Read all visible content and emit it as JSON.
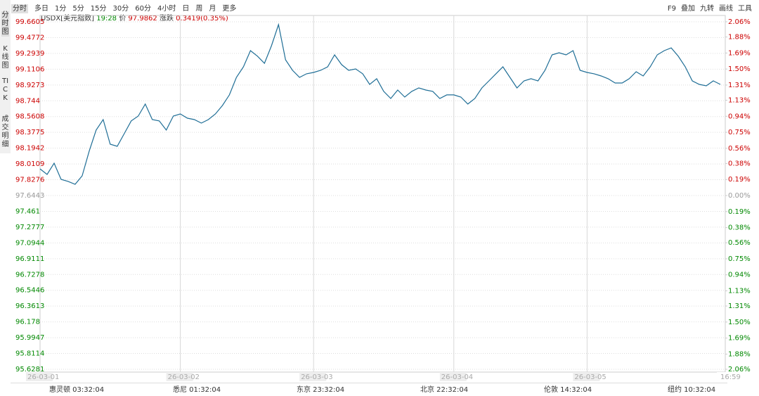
{
  "toolbar": {
    "periods": [
      "分时",
      "多日",
      "1分",
      "5分",
      "15分",
      "30分",
      "60分",
      "4小时",
      "日",
      "周",
      "月",
      "更多"
    ],
    "tools": [
      "F9",
      "叠加",
      "九转",
      "画线",
      "工具"
    ]
  },
  "sidebar": [
    "分时图",
    "K线图",
    "TICK",
    "成交明细"
  ],
  "header": {
    "symbol": "USDX[美元指数]",
    "time": "19:28",
    "price_label": "价",
    "price": "97.9862",
    "change_label": "涨跌",
    "change": "0.3419(0.35%)"
  },
  "timezones": [
    "惠灵顿 03:32:04",
    "悉尼 01:32:04",
    "东京 23:32:04",
    "北京 22:32:04",
    "伦敦 14:32:04",
    "纽约 10:32:04"
  ],
  "chart_data": {
    "type": "line",
    "categories": [
      "26-03-01",
      null,
      null,
      null,
      null,
      null,
      null,
      null,
      null,
      null,
      null,
      null,
      null,
      null,
      null,
      null,
      null,
      null,
      null,
      null,
      "26-03-02",
      null,
      null,
      null,
      null,
      null,
      null,
      null,
      null,
      null,
      null,
      null,
      null,
      null,
      null,
      null,
      null,
      null,
      null,
      "26-03-03",
      null,
      null,
      null,
      null,
      null,
      null,
      null,
      null,
      null,
      null,
      null,
      null,
      null,
      null,
      null,
      null,
      null,
      null,
      null,
      "26-03-04",
      null,
      null,
      null,
      null,
      null,
      null,
      null,
      null,
      null,
      null,
      null,
      null,
      null,
      null,
      null,
      null,
      null,
      null,
      "26-03-05",
      null,
      null,
      null,
      null,
      null,
      null,
      null,
      null,
      null,
      null,
      null,
      null,
      null,
      null,
      null,
      null,
      null,
      null,
      "16:59"
    ],
    "series": [
      {
        "color": "#1f6e96",
        "values": [
          97.954,
          97.889,
          98.02,
          97.832,
          97.808,
          97.775,
          97.873,
          98.159,
          98.404,
          98.526,
          98.24,
          98.216,
          98.363,
          98.51,
          98.567,
          98.706,
          98.526,
          98.51,
          98.404,
          98.567,
          98.591,
          98.542,
          98.526,
          98.485,
          98.526,
          98.591,
          98.689,
          98.812,
          99.016,
          99.138,
          99.326,
          99.261,
          99.179,
          99.383,
          99.628,
          99.22,
          99.097,
          99.016,
          99.057,
          99.073,
          99.097,
          99.138,
          99.277,
          99.163,
          99.097,
          99.114,
          99.057,
          98.934,
          99.0,
          98.853,
          98.771,
          98.869,
          98.787,
          98.853,
          98.893,
          98.869,
          98.853,
          98.771,
          98.812,
          98.812,
          98.787,
          98.706,
          98.771,
          98.893,
          98.975,
          99.057,
          99.138,
          99.016,
          98.893,
          98.975,
          99.0,
          98.975,
          99.097,
          99.277,
          99.301,
          99.277,
          99.326,
          99.097,
          99.073,
          99.057,
          99.032,
          99.0,
          98.95,
          98.95,
          99.0,
          99.081,
          99.032,
          99.138,
          99.277,
          99.326,
          99.358,
          99.261,
          99.138,
          98.975,
          98.934,
          98.918,
          98.975,
          98.934
        ]
      }
    ],
    "ylim": [
      95.6281,
      99.6605
    ],
    "yticks": [
      99.6605,
      99.4772,
      99.2939,
      99.1106,
      98.9273,
      98.744,
      98.5608,
      98.3775,
      98.1942,
      98.0109,
      97.8276,
      97.6443,
      97.461,
      97.2777,
      97.0944,
      96.9111,
      96.7278,
      96.5446,
      96.3613,
      96.178,
      95.9947,
      95.8114,
      95.6281
    ],
    "y2lim": [
      -2.06,
      2.06
    ],
    "y2ticks": [
      {
        "value": 2.06,
        "label": "2.06%"
      },
      {
        "value": 1.88,
        "label": "1.88%"
      },
      {
        "value": 1.69,
        "label": "1.69%"
      },
      {
        "value": 1.5,
        "label": "1.50%"
      },
      {
        "value": 1.31,
        "label": "1.31%"
      },
      {
        "value": 1.13,
        "label": "1.13%"
      },
      {
        "value": 0.94,
        "label": "0.94%"
      },
      {
        "value": 0.75,
        "label": "0.75%"
      },
      {
        "value": 0.56,
        "label": "0.56%"
      },
      {
        "value": 0.38,
        "label": "0.38%"
      },
      {
        "value": 0.19,
        "label": "0.19%"
      },
      {
        "value": 0,
        "label": "0.00%"
      },
      {
        "value": -0.19,
        "label": "0.19%"
      },
      {
        "value": -0.38,
        "label": "0.38%"
      },
      {
        "value": -0.56,
        "label": "0.56%"
      },
      {
        "value": -0.75,
        "label": "0.75%"
      },
      {
        "value": -0.94,
        "label": "0.94%"
      },
      {
        "value": -1.13,
        "label": "1.13%"
      },
      {
        "value": -1.31,
        "label": "1.31%"
      },
      {
        "value": -1.5,
        "label": "1.50%"
      },
      {
        "value": -1.69,
        "label": "1.69%"
      },
      {
        "value": -1.88,
        "label": "1.88%"
      },
      {
        "value": -2.06,
        "label": "2.06%"
      }
    ],
    "up_color": "#cc0000",
    "down_color": "#008800",
    "base_color": "#999999",
    "grid": true
  }
}
